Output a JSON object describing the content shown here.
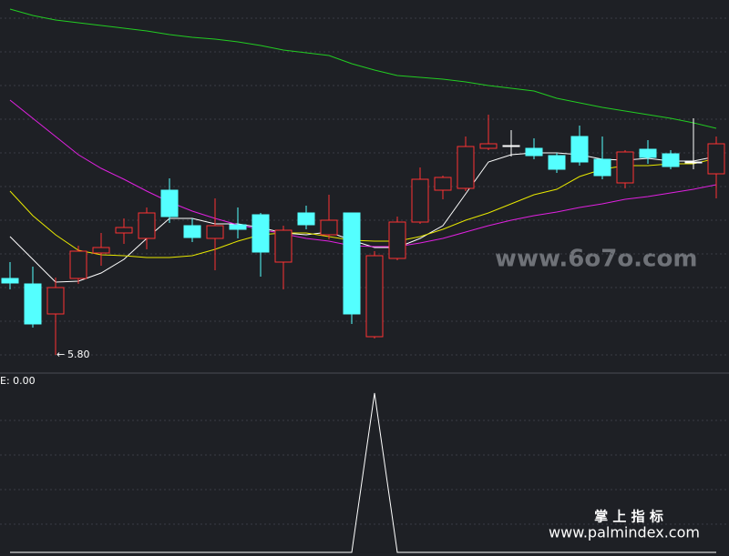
{
  "chart_data": [
    {
      "type": "candlestick",
      "up_color": "#ff3232",
      "down_color": "#54ffff",
      "flat_color": "#ffffff",
      "ylim": [
        5.76,
        7.36
      ],
      "open": [
        6.136,
        6.112,
        5.98,
        6.136,
        6.248,
        6.336,
        6.312,
        6.524,
        6.368,
        6.312,
        6.372,
        6.416,
        6.208,
        6.424,
        6.328,
        6.424,
        5.88,
        6.224,
        6.384,
        6.524,
        6.532,
        6.708,
        6.72,
        6.708,
        6.676,
        6.76,
        6.66,
        6.556,
        6.704,
        6.684,
        6.648,
        6.596
      ],
      "close": [
        6.116,
        5.936,
        6.096,
        6.256,
        6.272,
        6.36,
        6.424,
        6.408,
        6.316,
        6.368,
        6.352,
        6.252,
        6.348,
        6.372,
        6.392,
        5.98,
        6.236,
        6.384,
        6.572,
        6.58,
        6.716,
        6.728,
        6.72,
        6.676,
        6.616,
        6.648,
        6.588,
        6.692,
        6.668,
        6.628,
        6.648,
        6.728
      ],
      "high": [
        6.208,
        6.188,
        6.14,
        6.28,
        6.336,
        6.4,
        6.448,
        6.576,
        6.4,
        6.488,
        6.448,
        6.424,
        6.368,
        6.456,
        6.504,
        6.424,
        6.256,
        6.408,
        6.624,
        6.588,
        6.76,
        6.856,
        6.788,
        6.752,
        6.688,
        6.808,
        6.76,
        6.7,
        6.744,
        6.7,
        6.84,
        6.76
      ],
      "low": [
        6.088,
        5.92,
        5.8,
        6.112,
        6.192,
        6.288,
        6.264,
        6.38,
        6.296,
        6.172,
        6.312,
        6.144,
        6.088,
        6.352,
        6.308,
        5.936,
        5.872,
        6.216,
        6.376,
        6.484,
        6.52,
        6.7,
        6.672,
        6.66,
        6.6,
        6.632,
        6.572,
        6.532,
        6.64,
        6.616,
        6.616,
        6.488
      ],
      "low_label": "5.80",
      "series": [
        {
          "color": "#ffffff",
          "values": [
            6.32,
            6.22,
            6.12,
            6.124,
            6.16,
            6.22,
            6.312,
            6.4,
            6.4,
            6.376,
            6.376,
            6.36,
            6.336,
            6.328,
            6.34,
            6.304,
            6.272,
            6.272,
            6.312,
            6.368,
            6.508,
            6.648,
            6.68,
            6.688,
            6.688,
            6.68,
            6.66,
            6.656,
            6.664,
            6.652,
            6.652,
            6.672
          ]
        },
        {
          "color": "#e8e800",
          "values": [
            6.52,
            6.412,
            6.328,
            6.26,
            6.24,
            6.236,
            6.228,
            6.228,
            6.236,
            6.264,
            6.3,
            6.328,
            6.336,
            6.336,
            6.32,
            6.304,
            6.3,
            6.3,
            6.32,
            6.352,
            6.392,
            6.424,
            6.464,
            6.504,
            6.528,
            6.584,
            6.616,
            6.632,
            6.632,
            6.64,
            6.64,
            6.664
          ]
        },
        {
          "color": "#e020e0",
          "values": [
            6.92,
            6.84,
            6.76,
            6.68,
            6.62,
            6.572,
            6.52,
            6.472,
            6.432,
            6.4,
            6.372,
            6.352,
            6.332,
            6.312,
            6.3,
            6.28,
            6.276,
            6.276,
            6.292,
            6.312,
            6.34,
            6.368,
            6.392,
            6.412,
            6.428,
            6.448,
            6.464,
            6.484,
            6.496,
            6.512,
            6.528,
            6.548
          ]
        },
        {
          "color": "#22cc22",
          "values": [
            7.32,
            7.292,
            7.272,
            7.26,
            7.248,
            7.236,
            7.224,
            7.208,
            7.196,
            7.188,
            7.176,
            7.16,
            7.14,
            7.128,
            7.116,
            7.08,
            7.052,
            7.028,
            7.02,
            7.012,
            7.0,
            6.984,
            6.972,
            6.96,
            6.928,
            6.908,
            6.888,
            6.872,
            6.856,
            6.84,
            6.82,
            6.796
          ]
        }
      ]
    },
    {
      "type": "line",
      "label": "E: 0.00",
      "color": "#ffffff",
      "ylim": [
        0,
        1
      ],
      "values": [
        0,
        0,
        0,
        0,
        0,
        0,
        0,
        0,
        0,
        0,
        0,
        0,
        0,
        0,
        0,
        0,
        1,
        0,
        0,
        0,
        0,
        0,
        0,
        0,
        0,
        0,
        0,
        0,
        0,
        0,
        0,
        0
      ]
    }
  ],
  "watermarks": {
    "site": "www.6o7o.com",
    "brand": "掌 上 指 标",
    "url": "www.palmindex.com"
  }
}
